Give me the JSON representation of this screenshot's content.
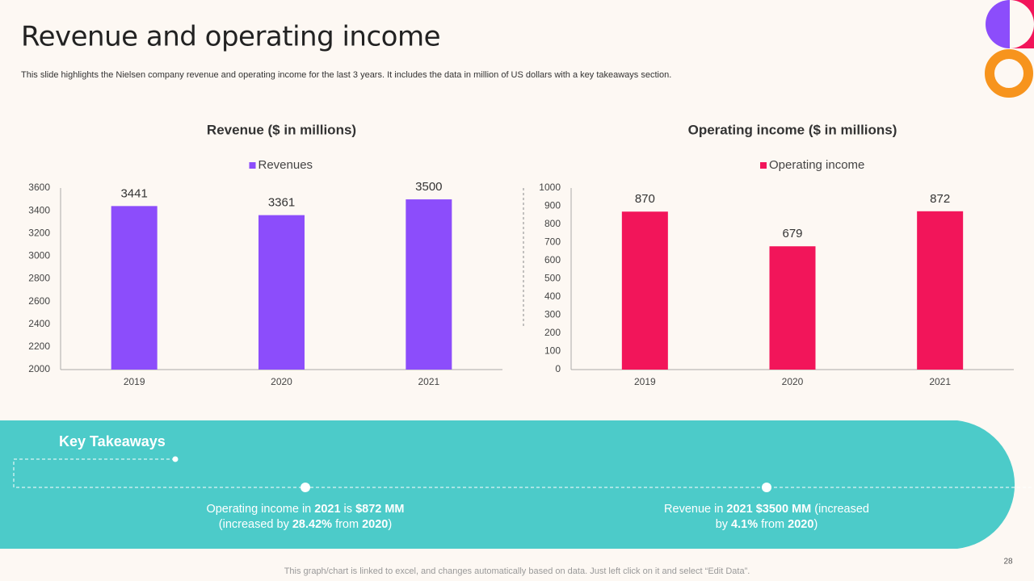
{
  "slide": {
    "title": "Revenue and operating income",
    "subtitle": "This slide highlights the Nielsen company revenue and operating income for the last 3 years. It includes the data in million of US dollars with a key takeaways section.",
    "page_number": "28",
    "footer": "This graph/chart is linked to excel, and changes automatically based on data. Just left click on it and select “Edit Data”."
  },
  "chart_data": [
    {
      "type": "bar",
      "title": "Revenue ($ in millions)",
      "categories": [
        "2019",
        "2020",
        "2021"
      ],
      "series": [
        {
          "name": "Revenues",
          "color": "#8c4dfb",
          "values": [
            3441,
            3361,
            3500
          ]
        }
      ],
      "ylim": [
        2000,
        3600
      ],
      "yticks": [
        2000,
        2200,
        2400,
        2600,
        2800,
        3000,
        3200,
        3400,
        3600
      ],
      "grid": false,
      "legend": "top"
    },
    {
      "type": "bar",
      "title": "Operating income ($ in millions)",
      "categories": [
        "2019",
        "2020",
        "2021"
      ],
      "series": [
        {
          "name": "Operating income",
          "color": "#f2155a",
          "values": [
            870,
            679,
            872
          ]
        }
      ],
      "ylim": [
        0,
        1000
      ],
      "yticks": [
        0,
        100,
        200,
        300,
        400,
        500,
        600,
        700,
        800,
        900,
        1000
      ],
      "grid": false,
      "legend": "top"
    }
  ],
  "takeaways": {
    "heading": "Key Takeaways",
    "items": [
      {
        "runs": [
          {
            "text": "Operating income in ",
            "bold": false
          },
          {
            "text": "2021",
            "bold": true
          },
          {
            "text": " is ",
            "bold": false
          },
          {
            "text": "$872 MM",
            "bold": true
          },
          {
            "text": " (increased by ",
            "bold": false
          },
          {
            "text": "28.42%",
            "bold": true
          },
          {
            "text": " from ",
            "bold": false
          },
          {
            "text": "2020",
            "bold": true
          },
          {
            "text": ")",
            "bold": false
          }
        ]
      },
      {
        "runs": [
          {
            "text": "Revenue in ",
            "bold": false
          },
          {
            "text": "2021",
            "bold": true
          },
          {
            "text": " ",
            "bold": false
          },
          {
            "text": "$3500 MM",
            "bold": true
          },
          {
            "text": " (increased by ",
            "bold": false
          },
          {
            "text": "4.1%",
            "bold": true
          },
          {
            "text": " from ",
            "bold": false
          },
          {
            "text": "2020",
            "bold": true
          },
          {
            "text": ")",
            "bold": false
          }
        ]
      }
    ]
  }
}
